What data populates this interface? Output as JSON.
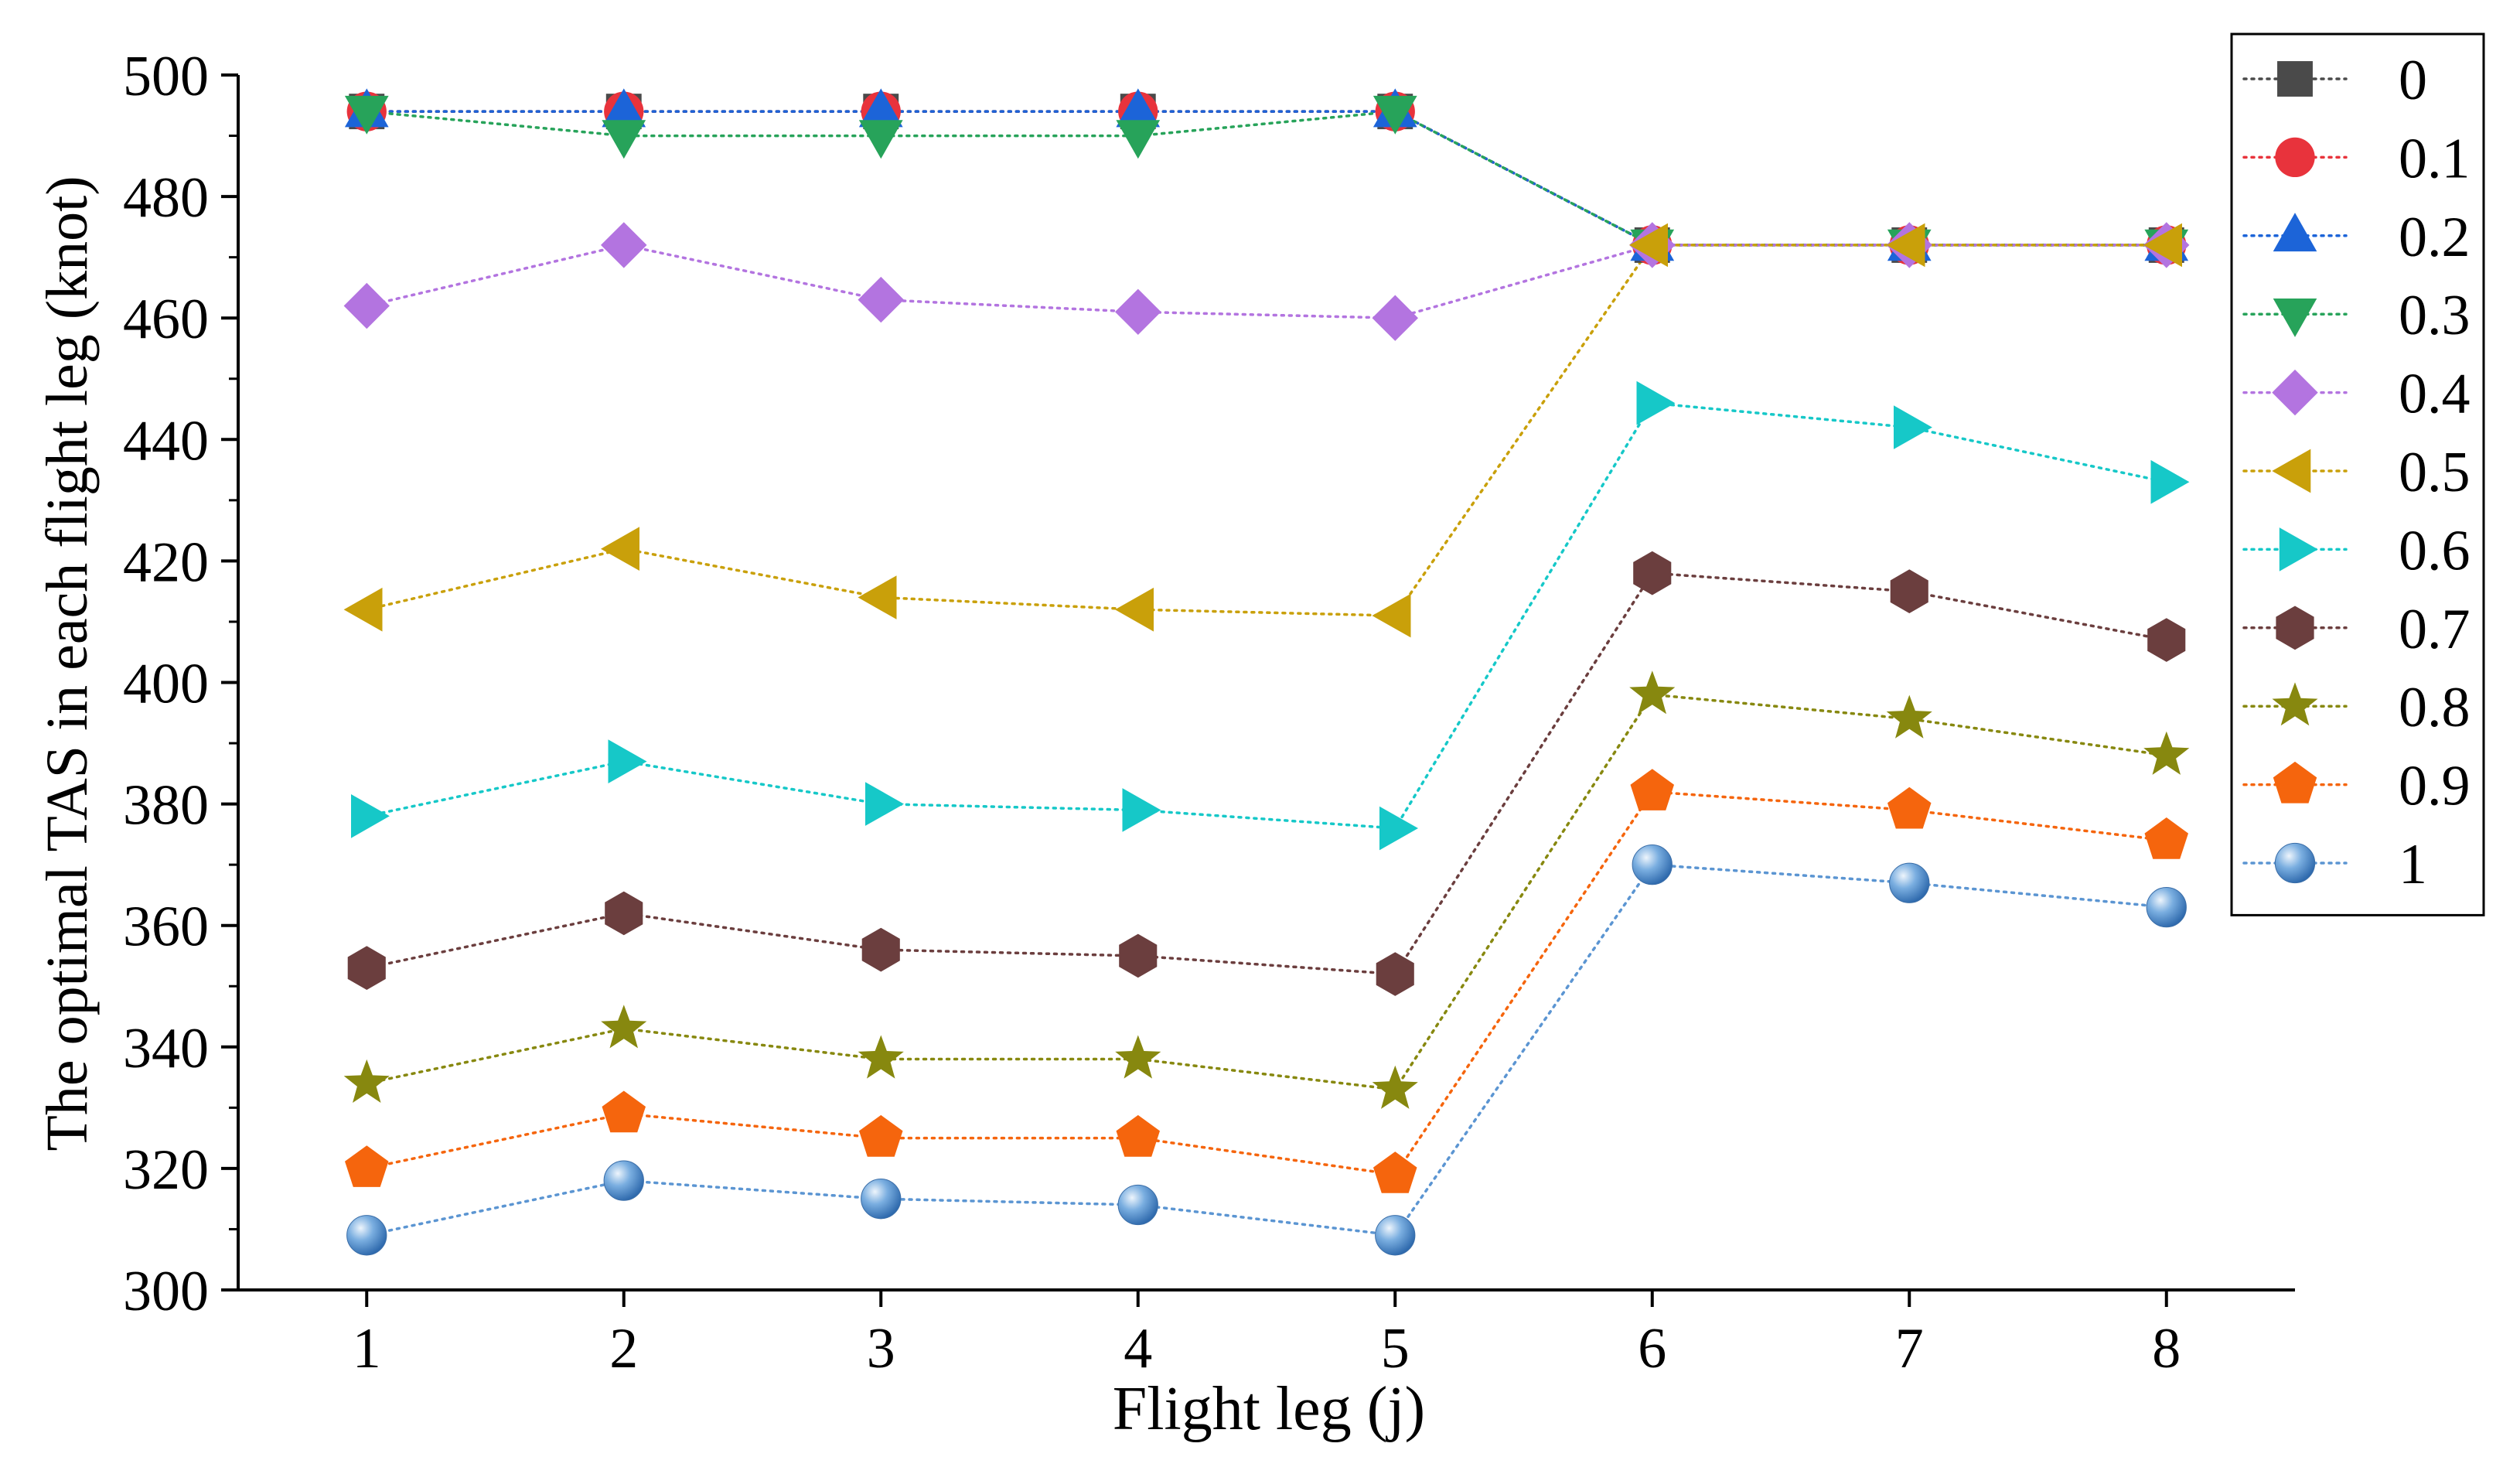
{
  "chart_data": {
    "type": "line",
    "title": "",
    "xlabel": "Flight leg (j)",
    "ylabel": "The optimal TAS in each flight leg (knot)",
    "categories": [
      "1",
      "2",
      "3",
      "4",
      "5",
      "6",
      "7",
      "8"
    ],
    "x": [
      1,
      2,
      3,
      4,
      5,
      6,
      7,
      8
    ],
    "xlim": [
      0.5,
      8.5
    ],
    "ylim": [
      300,
      500
    ],
    "yticks": [
      "300",
      "320",
      "340",
      "360",
      "380",
      "400",
      "420",
      "440",
      "460",
      "480",
      "500"
    ],
    "grid": false,
    "legend_position": "top-right outside plot",
    "series": [
      {
        "name": "0",
        "marker": "square",
        "color": "#4a4a4a",
        "values": [
          494,
          494,
          494,
          494,
          494,
          472,
          472,
          472
        ]
      },
      {
        "name": "0.1",
        "marker": "circle",
        "color": "#e8333c",
        "values": [
          494,
          494,
          494,
          494,
          494,
          472,
          472,
          472
        ]
      },
      {
        "name": "0.2",
        "marker": "triangle-up",
        "color": "#1c64d8",
        "values": [
          494,
          494,
          494,
          494,
          494,
          472,
          472,
          472
        ]
      },
      {
        "name": "0.3",
        "marker": "triangle-down",
        "color": "#27a35a",
        "values": [
          494,
          490,
          490,
          490,
          494,
          472,
          472,
          472
        ]
      },
      {
        "name": "0.4",
        "marker": "diamond",
        "color": "#b374e0",
        "values": [
          462,
          472,
          463,
          461,
          460,
          472,
          472,
          472
        ]
      },
      {
        "name": "0.5",
        "marker": "triangle-left",
        "color": "#c9a00a",
        "values": [
          412,
          422,
          414,
          412,
          411,
          472,
          472,
          472
        ]
      },
      {
        "name": "0.6",
        "marker": "triangle-right",
        "color": "#16c8c8",
        "values": [
          378,
          387,
          380,
          379,
          376,
          446,
          442,
          433
        ]
      },
      {
        "name": "0.7",
        "marker": "hexagon",
        "color": "#6b3e3e",
        "values": [
          353,
          362,
          356,
          355,
          352,
          418,
          415,
          407
        ]
      },
      {
        "name": "0.8",
        "marker": "star",
        "color": "#87880f",
        "values": [
          334,
          343,
          338,
          338,
          333,
          398,
          394,
          388
        ]
      },
      {
        "name": "0.9",
        "marker": "pentagon",
        "color": "#f5650d",
        "values": [
          320,
          329,
          325,
          325,
          319,
          382,
          379,
          374
        ]
      },
      {
        "name": "1",
        "marker": "sphere",
        "color": "#5b95d2",
        "values": [
          309,
          318,
          315,
          314,
          309,
          370,
          367,
          363
        ]
      }
    ]
  }
}
